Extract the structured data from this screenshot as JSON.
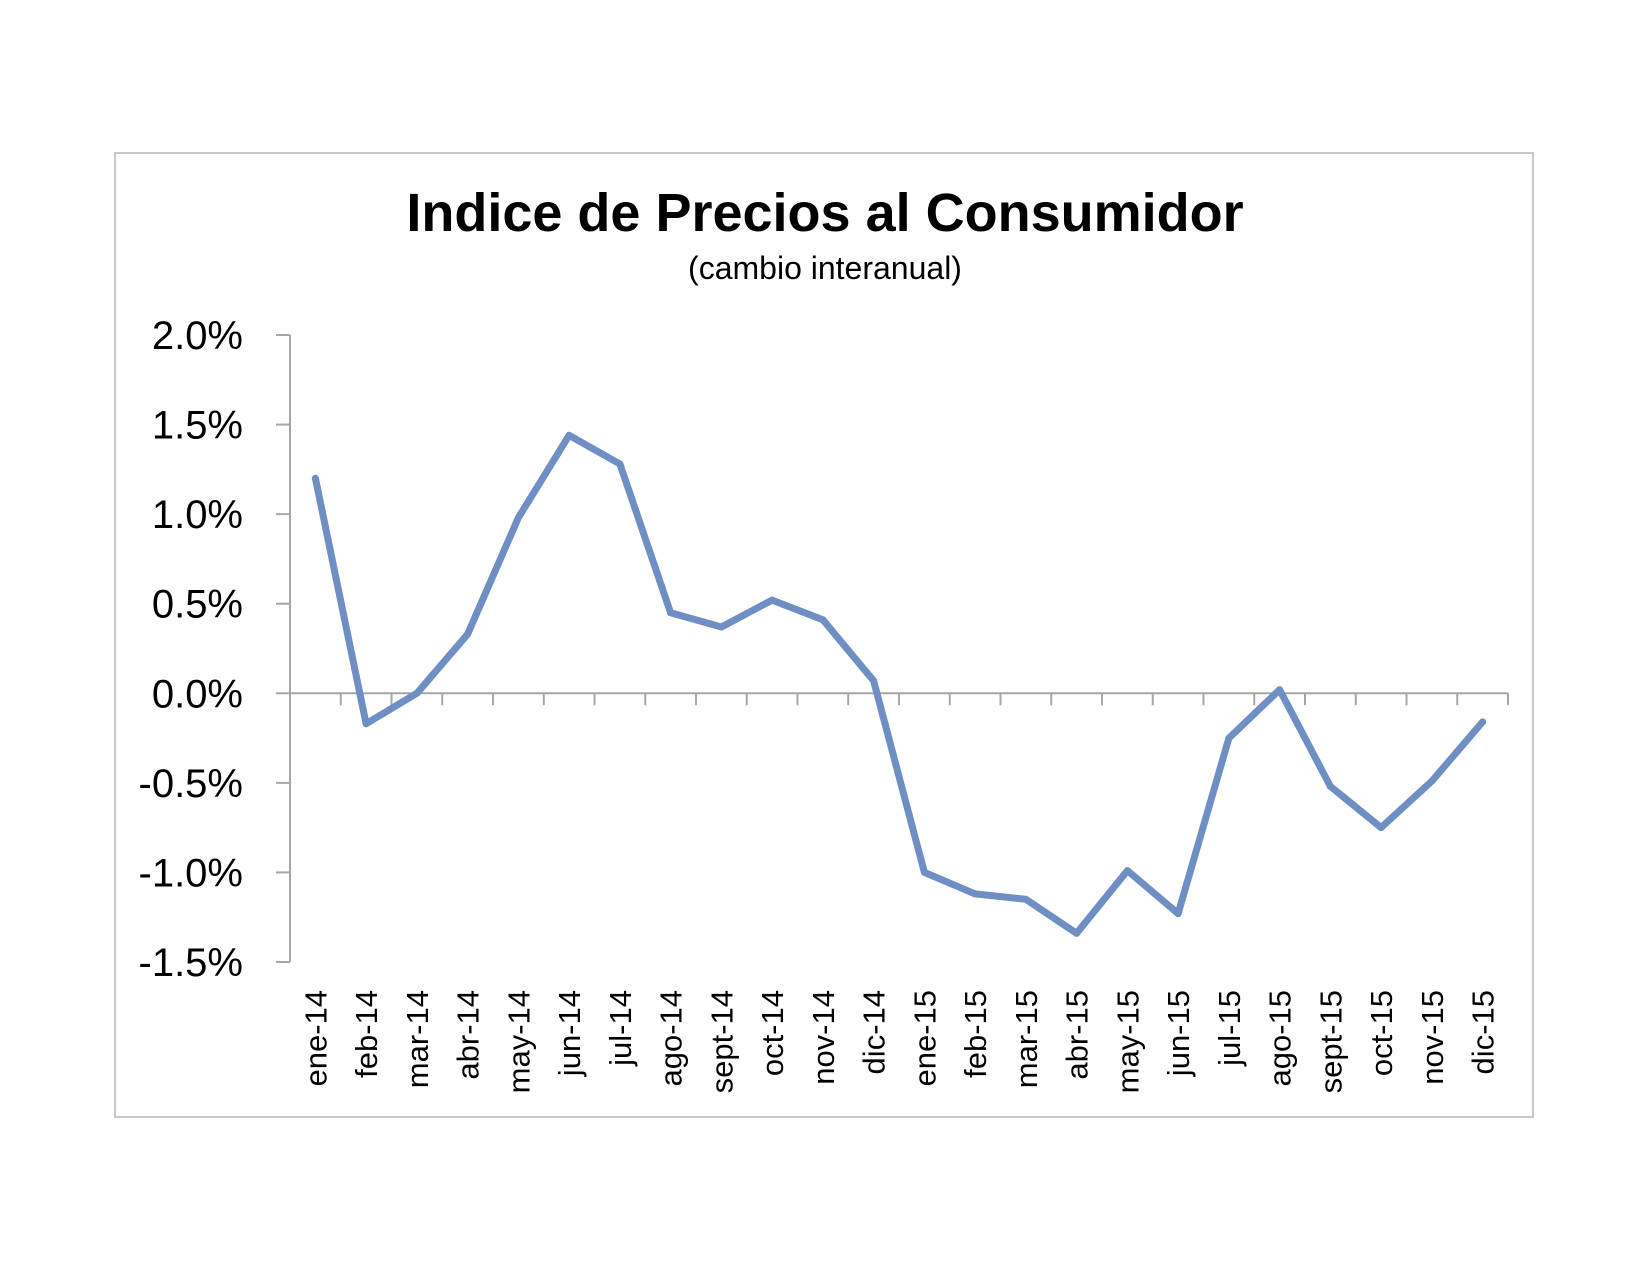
{
  "colors": {
    "series_line": "#6f8fc4",
    "axis": "#a6a6a6",
    "frame": "#c8c8c8"
  },
  "chart_data": {
    "type": "line",
    "title": "Indice de Precios al Consumidor",
    "subtitle": "(cambio interanual)",
    "xlabel": "",
    "ylabel": "",
    "ylim": [
      -1.5,
      2.0
    ],
    "yticks": [
      2.0,
      1.5,
      1.0,
      0.5,
      0.0,
      -0.5,
      -1.0,
      -1.5
    ],
    "ytick_labels": [
      "2.0%",
      "1.5%",
      "1.0%",
      "0.5%",
      "0.0%",
      "-0.5%",
      "-1.0%",
      "-1.5%"
    ],
    "grid": false,
    "legend": "none",
    "categories": [
      "ene-14",
      "feb-14",
      "mar-14",
      "abr-14",
      "may-14",
      "jun-14",
      "jul-14",
      "ago-14",
      "sept-14",
      "oct-14",
      "nov-14",
      "dic-14",
      "ene-15",
      "feb-15",
      "mar-15",
      "abr-15",
      "may-15",
      "jun-15",
      "jul-15",
      "ago-15",
      "sept-15",
      "oct-15",
      "nov-15",
      "dic-15"
    ],
    "series": [
      {
        "values": [
          1.2,
          -0.17,
          0.0,
          0.33,
          0.98,
          1.44,
          1.28,
          0.45,
          0.37,
          0.52,
          0.41,
          0.07,
          -1.0,
          -1.12,
          -1.15,
          -1.34,
          -0.99,
          -1.23,
          -0.25,
          0.02,
          -0.52,
          -0.75,
          -0.49,
          -0.16
        ]
      }
    ]
  }
}
